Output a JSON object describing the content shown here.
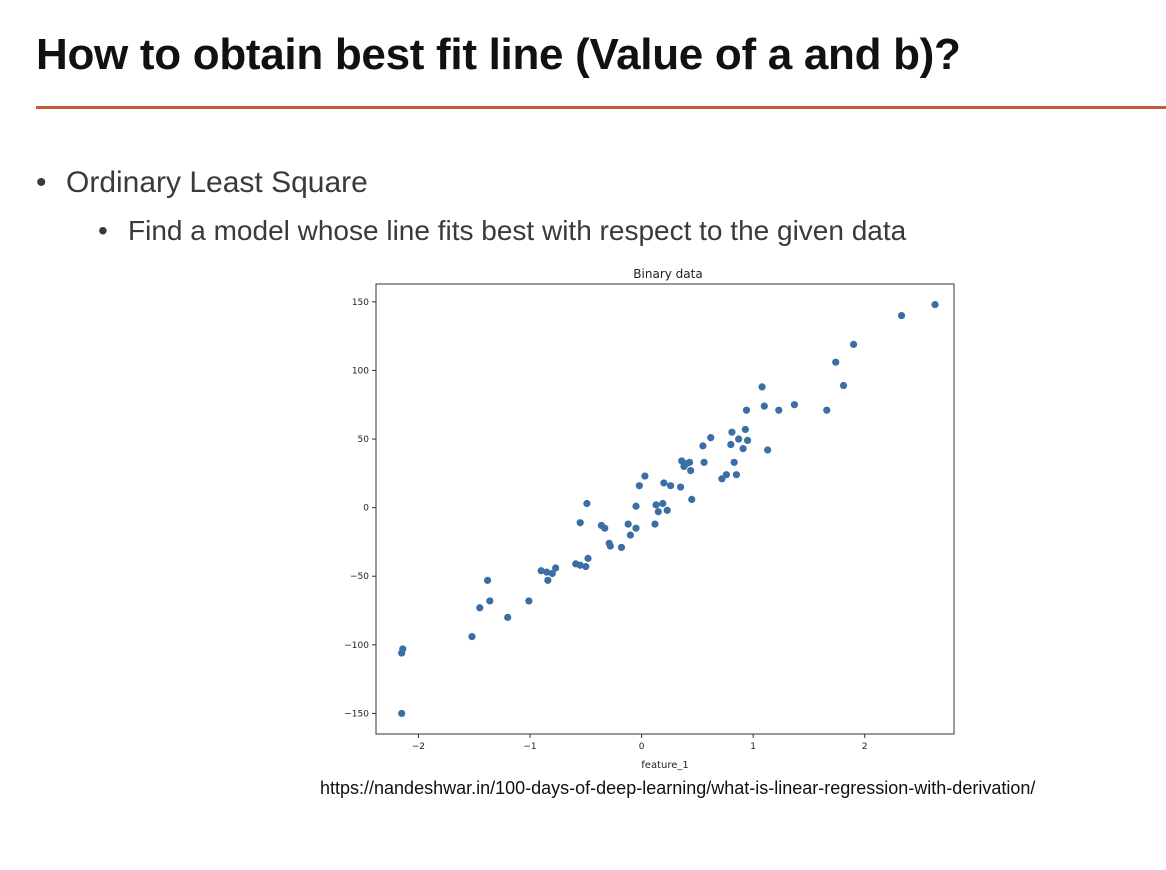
{
  "slide": {
    "title": "How to obtain best fit line (Value of a and b)?",
    "bullet_1": "Ordinary Least Square",
    "bullet_2": "Find a model whose line fits best with respect to the given data",
    "bullet_glyph": "•",
    "source": "https://nandeshwar.in/100-days-of-deep-learning/what-is-linear-regression-with-derivation/",
    "accent_color": "#c55a3b"
  },
  "chart_data": {
    "type": "scatter",
    "title": "Binary data",
    "xlabel": "feature_1",
    "ylabel": "",
    "xlim": [
      -2.38,
      2.8
    ],
    "ylim": [
      -165,
      163
    ],
    "xticks": [
      -2,
      -1,
      0,
      1,
      2
    ],
    "yticks": [
      -150,
      -100,
      -50,
      0,
      50,
      100,
      150
    ],
    "grid": false,
    "point_color": "#3b6ea5",
    "points": [
      [
        -2.15,
        -150
      ],
      [
        -2.15,
        -106
      ],
      [
        -2.14,
        -103
      ],
      [
        -1.52,
        -94
      ],
      [
        -1.45,
        -73
      ],
      [
        -1.38,
        -53
      ],
      [
        -1.36,
        -68
      ],
      [
        -1.2,
        -80
      ],
      [
        -1.01,
        -68
      ],
      [
        -0.9,
        -46
      ],
      [
        -0.85,
        -47
      ],
      [
        -0.84,
        -53
      ],
      [
        -0.8,
        -48
      ],
      [
        -0.77,
        -44
      ],
      [
        -0.59,
        -41
      ],
      [
        -0.55,
        -42
      ],
      [
        -0.55,
        -11
      ],
      [
        -0.5,
        -43
      ],
      [
        -0.48,
        -37
      ],
      [
        -0.49,
        3
      ],
      [
        -0.36,
        -13
      ],
      [
        -0.33,
        -15
      ],
      [
        -0.29,
        -26
      ],
      [
        -0.28,
        -28
      ],
      [
        -0.18,
        -29
      ],
      [
        -0.12,
        -12
      ],
      [
        -0.1,
        -20
      ],
      [
        -0.05,
        -15
      ],
      [
        -0.05,
        1
      ],
      [
        -0.02,
        16
      ],
      [
        0.03,
        23
      ],
      [
        0.12,
        -12
      ],
      [
        0.13,
        2
      ],
      [
        0.15,
        -3
      ],
      [
        0.19,
        3
      ],
      [
        0.2,
        18
      ],
      [
        0.23,
        -2
      ],
      [
        0.26,
        16
      ],
      [
        0.35,
        15
      ],
      [
        0.36,
        34
      ],
      [
        0.38,
        30
      ],
      [
        0.4,
        32
      ],
      [
        0.43,
        33
      ],
      [
        0.44,
        27
      ],
      [
        0.45,
        6
      ],
      [
        0.55,
        45
      ],
      [
        0.56,
        33
      ],
      [
        0.62,
        51
      ],
      [
        0.72,
        21
      ],
      [
        0.76,
        24
      ],
      [
        0.8,
        46
      ],
      [
        0.81,
        55
      ],
      [
        0.83,
        33
      ],
      [
        0.85,
        24
      ],
      [
        0.87,
        50
      ],
      [
        0.91,
        43
      ],
      [
        0.93,
        57
      ],
      [
        0.94,
        71
      ],
      [
        0.95,
        49
      ],
      [
        1.08,
        88
      ],
      [
        1.1,
        74
      ],
      [
        1.13,
        42
      ],
      [
        1.23,
        71
      ],
      [
        1.37,
        75
      ],
      [
        1.66,
        71
      ],
      [
        1.74,
        106
      ],
      [
        1.81,
        89
      ],
      [
        1.9,
        119
      ],
      [
        2.33,
        140
      ],
      [
        2.63,
        148
      ]
    ]
  }
}
